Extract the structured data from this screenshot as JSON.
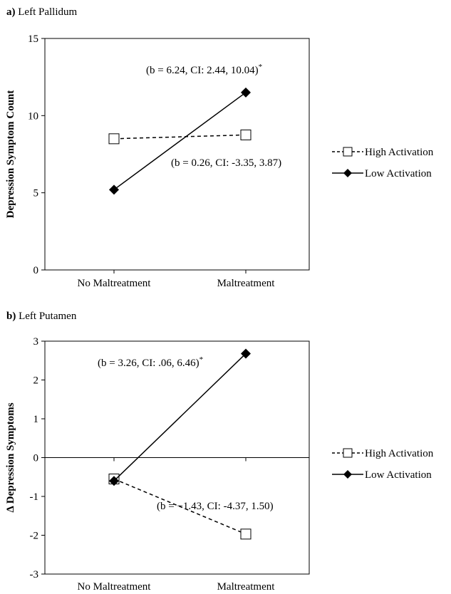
{
  "chart_data": [
    {
      "type": "line",
      "panel_id": "a)",
      "panel_title": "Left Pallidum",
      "ylabel": "Depression Symptom Count",
      "xlabel": "",
      "categories": [
        "No Maltreatment",
        "Maltreatment"
      ],
      "ylim": [
        0,
        15
      ],
      "yticks": [
        0,
        5,
        10,
        15
      ],
      "yzero": false,
      "series": [
        {
          "name": "High Activation",
          "values": [
            8.5,
            8.75
          ],
          "style": "dashed",
          "marker": "open-square"
        },
        {
          "name": "Low Activation",
          "values": [
            5.2,
            11.5
          ],
          "style": "solid",
          "marker": "filled-diamond"
        }
      ],
      "annotations": [
        {
          "text": "(b = 6.24, CI: 2.44, 10.04)",
          "sup": "*",
          "series": 1
        },
        {
          "text": "(b = 0.26, CI: -3.35, 3.87)",
          "sup": "",
          "series": 0
        }
      ],
      "legend": "right"
    },
    {
      "type": "line",
      "panel_id": "b)",
      "panel_title": "Left Putamen",
      "ylabel": "Δ Depression Symptoms",
      "xlabel": "",
      "categories": [
        "No Maltreatment",
        "Maltreatment"
      ],
      "ylim": [
        -3,
        3
      ],
      "yticks": [
        -3,
        -2,
        -1,
        0,
        1,
        2,
        3
      ],
      "yzero": true,
      "series": [
        {
          "name": "High Activation",
          "values": [
            -0.55,
            -1.97
          ],
          "style": "dashed",
          "marker": "open-square"
        },
        {
          "name": "Low Activation",
          "values": [
            -0.6,
            2.68
          ],
          "style": "solid",
          "marker": "filled-diamond"
        }
      ],
      "annotations": [
        {
          "text": "(b = 3.26, CI: .06, 6.46)",
          "sup": "*",
          "series": 1
        },
        {
          "text": "(b = −1.43, CI: -4.37, 1.50)",
          "sup": "",
          "series": 0
        }
      ],
      "legend": "right"
    }
  ]
}
